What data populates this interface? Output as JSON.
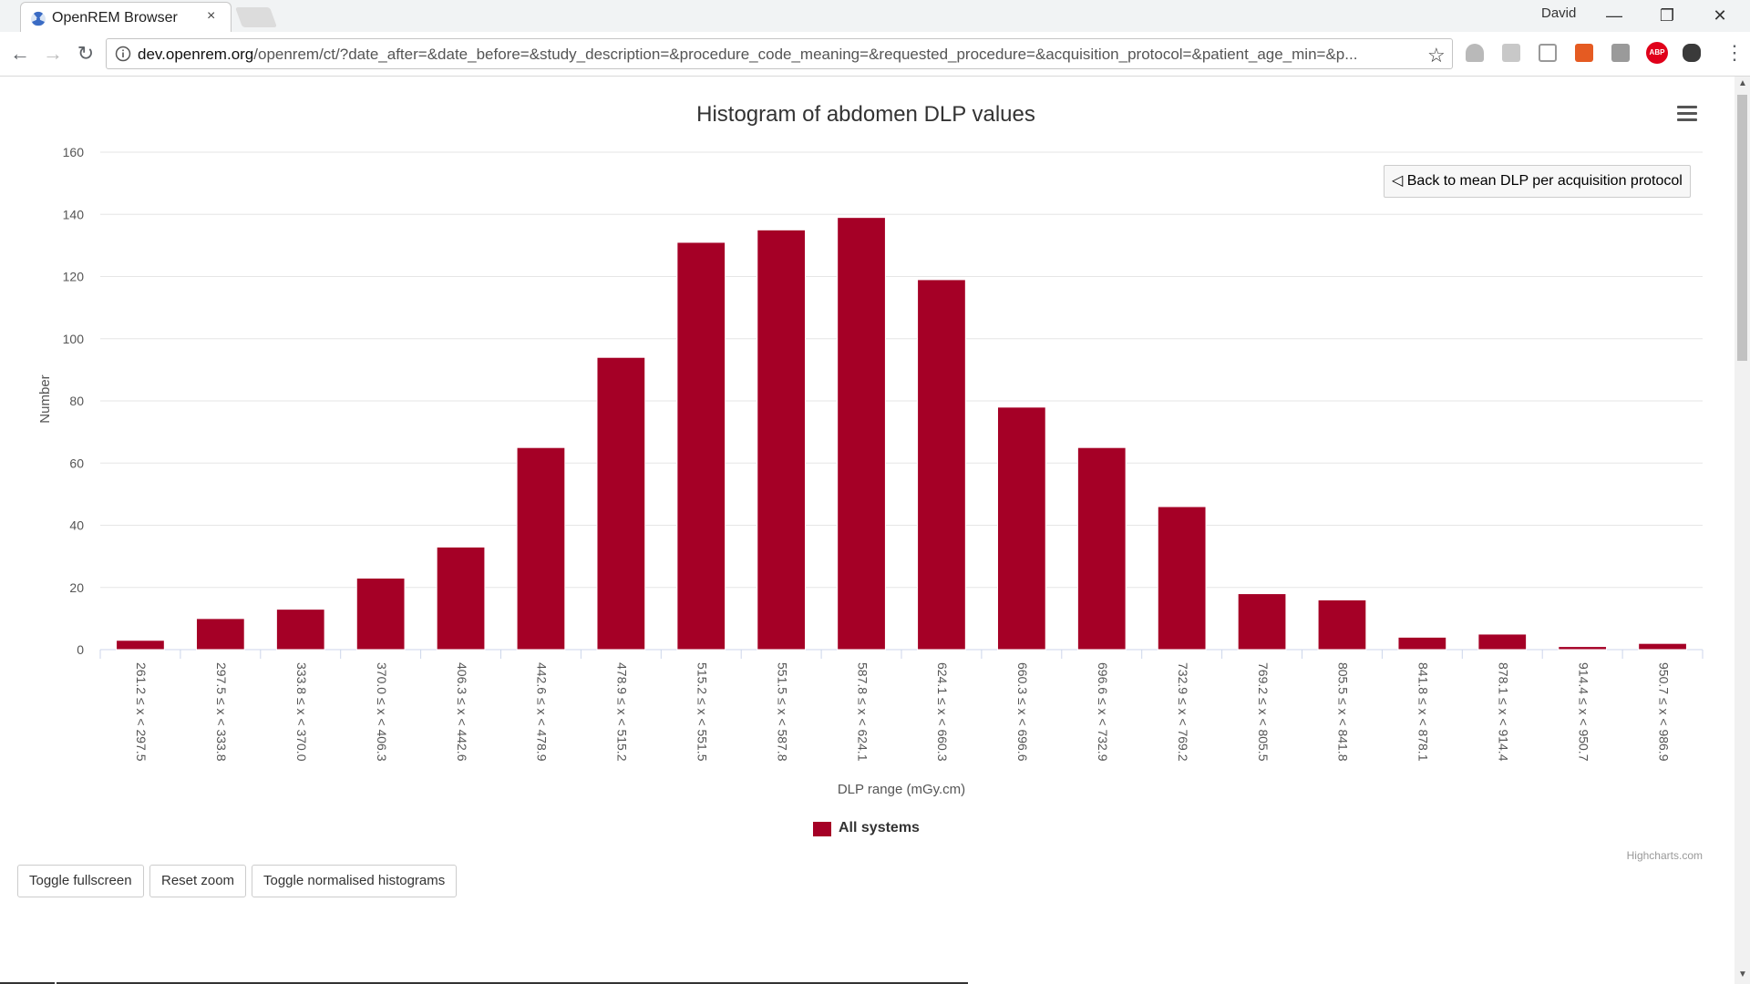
{
  "browser": {
    "tab_title": "OpenREM Browser",
    "tab_close": "×",
    "profile_name": "David",
    "window_controls": {
      "minimize": "—",
      "restore": "❐",
      "close": "✕"
    },
    "url_host": "dev.openrem.org",
    "url_path": "/openrem/ct/?date_after=&date_before=&study_description=&procedure_code_meaning=&requested_procedure=&acquisition_protocol=&patient_age_min=&p...",
    "extension_abp_label": "ABP",
    "icons": {
      "back": "arrow-left-icon",
      "forward": "arrow-right-icon",
      "reload": "reload-icon",
      "info": "info-icon",
      "bookmark": "star-icon",
      "menu": "kebab-menu-icon"
    }
  },
  "page": {
    "back_button_label": "◁ Back to mean DLP per acquisition protocol",
    "buttons": {
      "fullscreen": "Toggle fullscreen",
      "reset_zoom": "Reset zoom",
      "normalise": "Toggle normalised histograms"
    },
    "credits": "Highcharts.com"
  },
  "chart_data": {
    "type": "bar",
    "title": "Histogram of abdomen DLP values",
    "xlabel": "DLP range (mGy.cm)",
    "ylabel": "Number",
    "ylim": [
      0,
      160
    ],
    "yticks": [
      0,
      20,
      40,
      60,
      80,
      100,
      120,
      140,
      160
    ],
    "grid": true,
    "legend_position": "bottom-center",
    "categories": [
      "261.2 ≤ x < 297.5",
      "297.5 ≤ x < 333.8",
      "333.8 ≤ x < 370.0",
      "370.0 ≤ x < 406.3",
      "406.3 ≤ x < 442.6",
      "442.6 ≤ x < 478.9",
      "478.9 ≤ x < 515.2",
      "515.2 ≤ x < 551.5",
      "551.5 ≤ x < 587.8",
      "587.8 ≤ x < 624.1",
      "624.1 ≤ x < 660.3",
      "660.3 ≤ x < 696.6",
      "696.6 ≤ x < 732.9",
      "732.9 ≤ x < 769.2",
      "769.2 ≤ x < 805.5",
      "805.5 ≤ x < 841.8",
      "841.8 ≤ x < 878.1",
      "878.1 ≤ x < 914.4",
      "914.4 ≤ x < 950.7",
      "950.7 ≤ x < 986.9"
    ],
    "series": [
      {
        "name": "All systems",
        "color": "#a50026",
        "values": [
          3,
          10,
          13,
          23,
          33,
          65,
          94,
          131,
          135,
          139,
          119,
          78,
          65,
          46,
          18,
          16,
          4,
          5,
          1,
          2
        ]
      }
    ]
  }
}
